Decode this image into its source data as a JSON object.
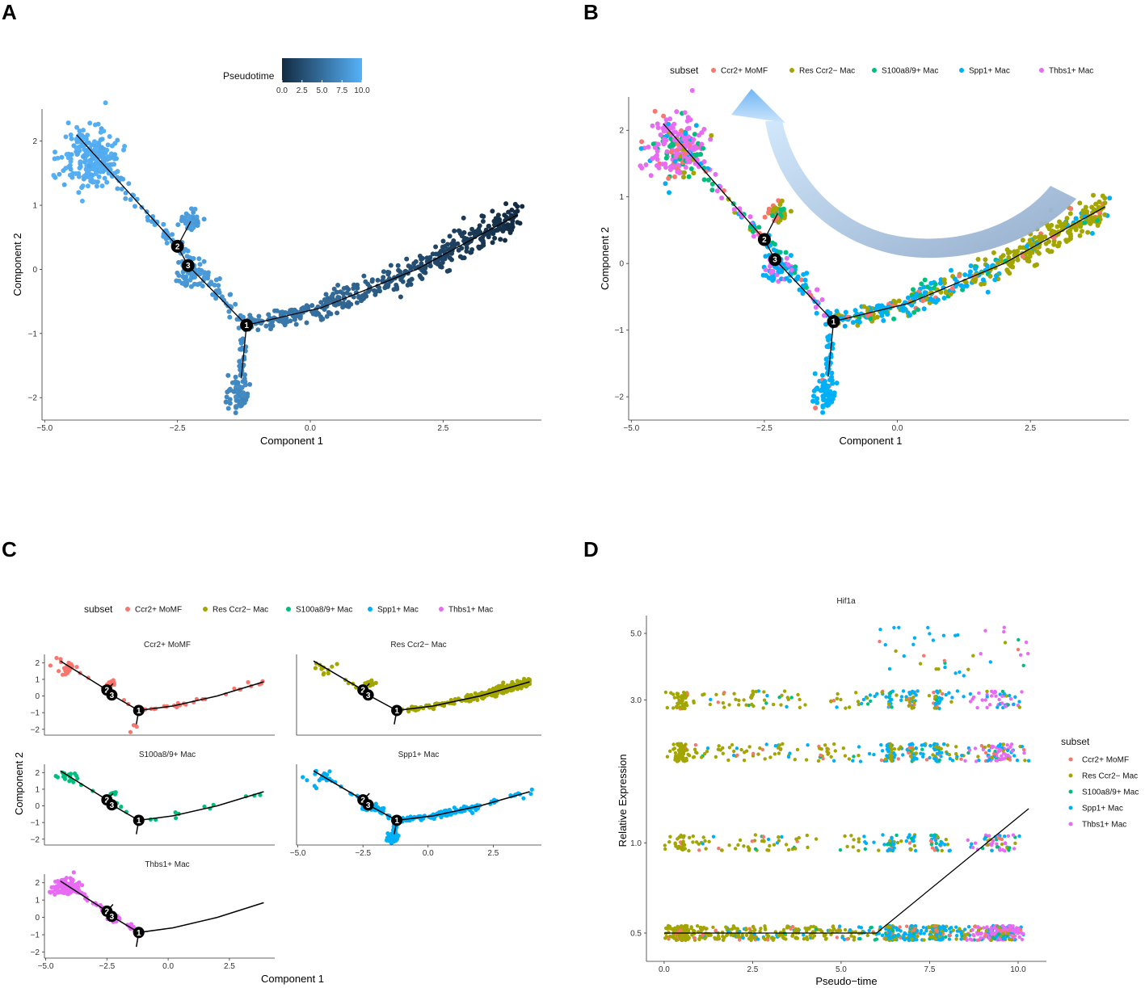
{
  "figure": {
    "panel_labels": [
      "A",
      "B",
      "C",
      "D"
    ],
    "colors": {
      "Ccr2+ MoMF": "#f8766d",
      "Res Ccr2− Mac": "#a3a500",
      "S100a8/9+ Mac": "#00bf7d",
      "Spp1+ Mac": "#00b0f6",
      "Thbs1+ Mac": "#e76bf3",
      "pseudotime_low": "#132b43",
      "pseudotime_high": "#56b1f7"
    }
  },
  "chart_data": [
    {
      "panel": "A",
      "type": "scatter",
      "title": "",
      "xlabel": "Component 1",
      "ylabel": "Component 2",
      "xlim": [
        -5.05,
        4.35
      ],
      "ylim": [
        -2.35,
        2.5
      ],
      "xticks": [
        "−5.0",
        "−2.5",
        "0.0",
        "2.5"
      ],
      "xtick_values": [
        -5.0,
        -2.5,
        0.0,
        2.5
      ],
      "yticks": [
        "−2",
        "−1",
        "0",
        "1",
        "2"
      ],
      "ytick_values": [
        -2,
        -1,
        0,
        1,
        2
      ],
      "color_by": "Pseudotime",
      "colorbar": {
        "title": "Pseudotime",
        "range": [
          0,
          10
        ],
        "ticks": [
          "0.0",
          "2.5",
          "5.0",
          "7.5",
          "10.0"
        ]
      },
      "branch_points": [
        {
          "label": "1",
          "x": -1.2,
          "y": -0.87
        },
        {
          "label": "2",
          "x": -2.5,
          "y": 0.36
        },
        {
          "label": "3",
          "x": -2.3,
          "y": 0.06
        }
      ]
    },
    {
      "panel": "B",
      "type": "scatter",
      "xlabel": "Component 1",
      "ylabel": "Component 2",
      "xlim": [
        -5.05,
        4.35
      ],
      "ylim": [
        -2.35,
        2.5
      ],
      "xticks": [
        "−5.0",
        "−2.5",
        "0.0",
        "2.5"
      ],
      "xtick_values": [
        -5.0,
        -2.5,
        0.0,
        2.5
      ],
      "yticks": [
        "−2",
        "−1",
        "0",
        "1",
        "2"
      ],
      "ytick_values": [
        -2,
        -1,
        0,
        1,
        2
      ],
      "legend_title": "subset",
      "legend": [
        "Ccr2+ MoMF",
        "Res Ccr2− Mac",
        "S100a8/9+ Mac",
        "Spp1+ Mac",
        "Thbs1+ Mac"
      ],
      "annotation": "curved arrow from late pseudotime branch (Res Ccr2− Mac) toward early branch",
      "branch_points": [
        {
          "label": "1",
          "x": -1.2,
          "y": -0.87
        },
        {
          "label": "2",
          "x": -2.5,
          "y": 0.36
        },
        {
          "label": "3",
          "x": -2.3,
          "y": 0.06
        }
      ]
    },
    {
      "panel": "C",
      "type": "scatter",
      "facets": [
        "Ccr2+ MoMF",
        "Res Ccr2− Mac",
        "S100a8/9+ Mac",
        "Spp1+ Mac",
        "Thbs1+ Mac"
      ],
      "xlabel": "Component 1",
      "ylabel": "Component 2",
      "xlim": [
        -5.05,
        4.35
      ],
      "ylim": [
        -2.35,
        2.5
      ],
      "xticks": [
        "−5.0",
        "−2.5",
        "0.0",
        "2.5"
      ],
      "xtick_values": [
        -5.0,
        -2.5,
        0.0,
        2.5
      ],
      "yticks": [
        "−2",
        "−1",
        "0",
        "1",
        "2"
      ],
      "ytick_values": [
        -2,
        -1,
        0,
        1,
        2
      ],
      "legend_title": "subset",
      "legend": [
        "Ccr2+ MoMF",
        "Res Ccr2− Mac",
        "S100a8/9+ Mac",
        "Spp1+ Mac",
        "Thbs1+ Mac"
      ]
    },
    {
      "panel": "D",
      "type": "scatter",
      "title": "Hif1a",
      "xlabel": "Pseudo−time",
      "ylabel": "Relative Expression",
      "xlim": [
        -0.5,
        10.8
      ],
      "xticks": [
        "0.0",
        "2.5",
        "5.0",
        "7.5",
        "10.0"
      ],
      "xtick_values": [
        0,
        2.5,
        5.0,
        7.5,
        10.0
      ],
      "yscale": "log",
      "yticks": [
        "0.5",
        "1.0",
        "3.0",
        "5.0"
      ],
      "ytick_values": [
        0.5,
        1.0,
        3.0,
        5.0
      ],
      "expression_bands": [
        0.5,
        1.0,
        2.0,
        3.0,
        4.0
      ],
      "legend_title": "subset",
      "legend": [
        "Ccr2+ MoMF",
        "Res Ccr2− Mac",
        "S100a8/9+ Mac",
        "Spp1+ Mac",
        "Thbs1+ Mac"
      ],
      "trend_line": {
        "x": [
          0,
          6,
          10.3
        ],
        "y": [
          0.5,
          0.5,
          1.3
        ]
      }
    }
  ]
}
